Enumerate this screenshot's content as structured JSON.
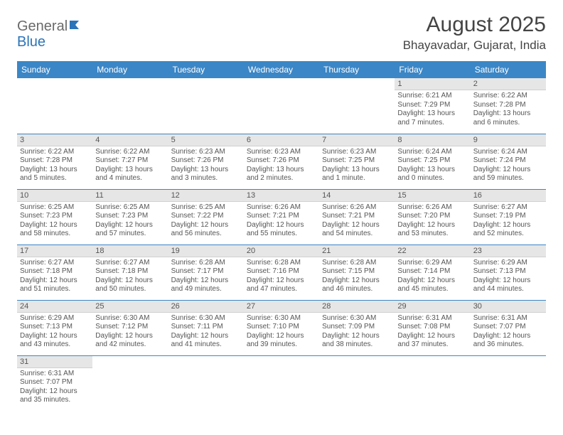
{
  "brand": {
    "general": "General",
    "blue": "Blue"
  },
  "title": "August 2025",
  "location": "Bhayavadar, Gujarat, India",
  "colors": {
    "header_bg": "#3b86c6",
    "header_fg": "#ffffff",
    "daynum_bg": "#e6e6e6",
    "row_border": "#3b86c6",
    "text": "#555555",
    "brand_blue": "#2a74b8"
  },
  "dow": [
    "Sunday",
    "Monday",
    "Tuesday",
    "Wednesday",
    "Thursday",
    "Friday",
    "Saturday"
  ],
  "weeks": [
    [
      null,
      null,
      null,
      null,
      null,
      {
        "n": "1",
        "sr": "Sunrise: 6:21 AM",
        "ss": "Sunset: 7:29 PM",
        "dl": "Daylight: 13 hours and 7 minutes."
      },
      {
        "n": "2",
        "sr": "Sunrise: 6:22 AM",
        "ss": "Sunset: 7:28 PM",
        "dl": "Daylight: 13 hours and 6 minutes."
      }
    ],
    [
      {
        "n": "3",
        "sr": "Sunrise: 6:22 AM",
        "ss": "Sunset: 7:28 PM",
        "dl": "Daylight: 13 hours and 5 minutes."
      },
      {
        "n": "4",
        "sr": "Sunrise: 6:22 AM",
        "ss": "Sunset: 7:27 PM",
        "dl": "Daylight: 13 hours and 4 minutes."
      },
      {
        "n": "5",
        "sr": "Sunrise: 6:23 AM",
        "ss": "Sunset: 7:26 PM",
        "dl": "Daylight: 13 hours and 3 minutes."
      },
      {
        "n": "6",
        "sr": "Sunrise: 6:23 AM",
        "ss": "Sunset: 7:26 PM",
        "dl": "Daylight: 13 hours and 2 minutes."
      },
      {
        "n": "7",
        "sr": "Sunrise: 6:23 AM",
        "ss": "Sunset: 7:25 PM",
        "dl": "Daylight: 13 hours and 1 minute."
      },
      {
        "n": "8",
        "sr": "Sunrise: 6:24 AM",
        "ss": "Sunset: 7:25 PM",
        "dl": "Daylight: 13 hours and 0 minutes."
      },
      {
        "n": "9",
        "sr": "Sunrise: 6:24 AM",
        "ss": "Sunset: 7:24 PM",
        "dl": "Daylight: 12 hours and 59 minutes."
      }
    ],
    [
      {
        "n": "10",
        "sr": "Sunrise: 6:25 AM",
        "ss": "Sunset: 7:23 PM",
        "dl": "Daylight: 12 hours and 58 minutes."
      },
      {
        "n": "11",
        "sr": "Sunrise: 6:25 AM",
        "ss": "Sunset: 7:23 PM",
        "dl": "Daylight: 12 hours and 57 minutes."
      },
      {
        "n": "12",
        "sr": "Sunrise: 6:25 AM",
        "ss": "Sunset: 7:22 PM",
        "dl": "Daylight: 12 hours and 56 minutes."
      },
      {
        "n": "13",
        "sr": "Sunrise: 6:26 AM",
        "ss": "Sunset: 7:21 PM",
        "dl": "Daylight: 12 hours and 55 minutes."
      },
      {
        "n": "14",
        "sr": "Sunrise: 6:26 AM",
        "ss": "Sunset: 7:21 PM",
        "dl": "Daylight: 12 hours and 54 minutes."
      },
      {
        "n": "15",
        "sr": "Sunrise: 6:26 AM",
        "ss": "Sunset: 7:20 PM",
        "dl": "Daylight: 12 hours and 53 minutes."
      },
      {
        "n": "16",
        "sr": "Sunrise: 6:27 AM",
        "ss": "Sunset: 7:19 PM",
        "dl": "Daylight: 12 hours and 52 minutes."
      }
    ],
    [
      {
        "n": "17",
        "sr": "Sunrise: 6:27 AM",
        "ss": "Sunset: 7:18 PM",
        "dl": "Daylight: 12 hours and 51 minutes."
      },
      {
        "n": "18",
        "sr": "Sunrise: 6:27 AM",
        "ss": "Sunset: 7:18 PM",
        "dl": "Daylight: 12 hours and 50 minutes."
      },
      {
        "n": "19",
        "sr": "Sunrise: 6:28 AM",
        "ss": "Sunset: 7:17 PM",
        "dl": "Daylight: 12 hours and 49 minutes."
      },
      {
        "n": "20",
        "sr": "Sunrise: 6:28 AM",
        "ss": "Sunset: 7:16 PM",
        "dl": "Daylight: 12 hours and 47 minutes."
      },
      {
        "n": "21",
        "sr": "Sunrise: 6:28 AM",
        "ss": "Sunset: 7:15 PM",
        "dl": "Daylight: 12 hours and 46 minutes."
      },
      {
        "n": "22",
        "sr": "Sunrise: 6:29 AM",
        "ss": "Sunset: 7:14 PM",
        "dl": "Daylight: 12 hours and 45 minutes."
      },
      {
        "n": "23",
        "sr": "Sunrise: 6:29 AM",
        "ss": "Sunset: 7:13 PM",
        "dl": "Daylight: 12 hours and 44 minutes."
      }
    ],
    [
      {
        "n": "24",
        "sr": "Sunrise: 6:29 AM",
        "ss": "Sunset: 7:13 PM",
        "dl": "Daylight: 12 hours and 43 minutes."
      },
      {
        "n": "25",
        "sr": "Sunrise: 6:30 AM",
        "ss": "Sunset: 7:12 PM",
        "dl": "Daylight: 12 hours and 42 minutes."
      },
      {
        "n": "26",
        "sr": "Sunrise: 6:30 AM",
        "ss": "Sunset: 7:11 PM",
        "dl": "Daylight: 12 hours and 41 minutes."
      },
      {
        "n": "27",
        "sr": "Sunrise: 6:30 AM",
        "ss": "Sunset: 7:10 PM",
        "dl": "Daylight: 12 hours and 39 minutes."
      },
      {
        "n": "28",
        "sr": "Sunrise: 6:30 AM",
        "ss": "Sunset: 7:09 PM",
        "dl": "Daylight: 12 hours and 38 minutes."
      },
      {
        "n": "29",
        "sr": "Sunrise: 6:31 AM",
        "ss": "Sunset: 7:08 PM",
        "dl": "Daylight: 12 hours and 37 minutes."
      },
      {
        "n": "30",
        "sr": "Sunrise: 6:31 AM",
        "ss": "Sunset: 7:07 PM",
        "dl": "Daylight: 12 hours and 36 minutes."
      }
    ],
    [
      {
        "n": "31",
        "sr": "Sunrise: 6:31 AM",
        "ss": "Sunset: 7:07 PM",
        "dl": "Daylight: 12 hours and 35 minutes."
      },
      null,
      null,
      null,
      null,
      null,
      null
    ]
  ]
}
